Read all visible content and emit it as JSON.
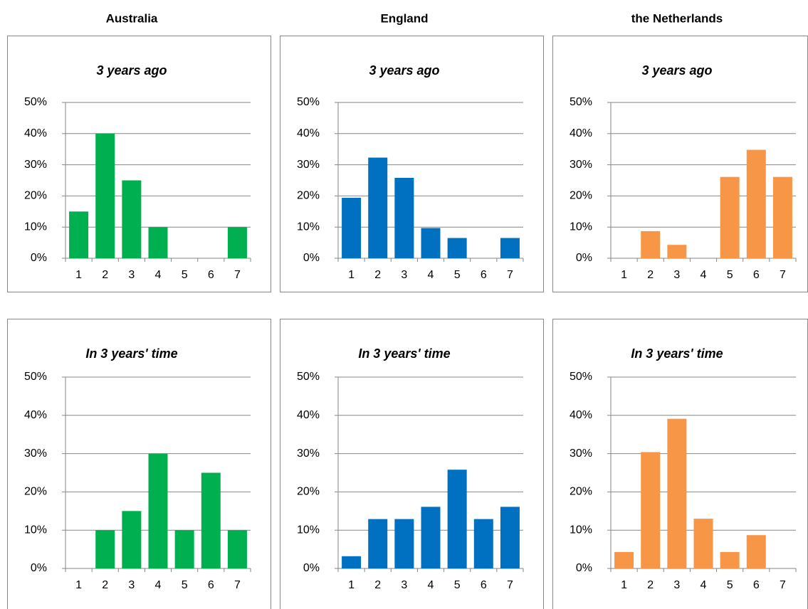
{
  "columns": [
    "Australia",
    "England",
    "the Netherlands"
  ],
  "chart_data": [
    {
      "type": "bar",
      "title": "3 years ago",
      "categories": [
        "1",
        "2",
        "3",
        "4",
        "5",
        "6",
        "7"
      ],
      "values": [
        15,
        40,
        25,
        10,
        0,
        0,
        10
      ],
      "color": "#00b050",
      "ylim": [
        0,
        50
      ],
      "yticks": [
        {
          "value": 0,
          "label": "0%"
        },
        {
          "value": 10,
          "label": "10%"
        },
        {
          "value": 20,
          "label": "20%"
        },
        {
          "value": 30,
          "label": "30%"
        },
        {
          "value": 40,
          "label": "40%"
        },
        {
          "value": 50,
          "label": "50%"
        }
      ],
      "grid": true
    },
    {
      "type": "bar",
      "title": "3 years ago",
      "categories": [
        "1",
        "2",
        "3",
        "4",
        "5",
        "6",
        "7"
      ],
      "values": [
        19.4,
        32.3,
        25.8,
        9.7,
        6.5,
        0,
        6.5
      ],
      "color": "#0070c0",
      "ylim": [
        0,
        50
      ],
      "yticks": [
        {
          "value": 0,
          "label": "0%"
        },
        {
          "value": 10,
          "label": "10%"
        },
        {
          "value": 20,
          "label": "20%"
        },
        {
          "value": 30,
          "label": "30%"
        },
        {
          "value": 40,
          "label": "40%"
        },
        {
          "value": 50,
          "label": "50%"
        }
      ],
      "grid": true
    },
    {
      "type": "bar",
      "title": "3 years ago",
      "categories": [
        "1",
        "2",
        "3",
        "4",
        "5",
        "6",
        "7"
      ],
      "values": [
        0,
        8.7,
        4.3,
        0,
        26.1,
        34.8,
        26.1
      ],
      "color": "#f79646",
      "ylim": [
        0,
        50
      ],
      "yticks": [
        {
          "value": 0,
          "label": "0%"
        },
        {
          "value": 10,
          "label": "10%"
        },
        {
          "value": 20,
          "label": "20%"
        },
        {
          "value": 30,
          "label": "30%"
        },
        {
          "value": 40,
          "label": "40%"
        },
        {
          "value": 50,
          "label": "50%"
        }
      ],
      "grid": true
    },
    {
      "type": "bar",
      "title": "In 3 years' time",
      "categories": [
        "1",
        "2",
        "3",
        "4",
        "5",
        "6",
        "7"
      ],
      "values": [
        0,
        10,
        15,
        30,
        10,
        25,
        10
      ],
      "color": "#00b050",
      "ylim": [
        0,
        50
      ],
      "yticks": [
        {
          "value": 0,
          "label": "0%"
        },
        {
          "value": 10,
          "label": "10%"
        },
        {
          "value": 20,
          "label": "20%"
        },
        {
          "value": 30,
          "label": "30%"
        },
        {
          "value": 40,
          "label": "40%"
        },
        {
          "value": 50,
          "label": "50%"
        }
      ],
      "grid": true
    },
    {
      "type": "bar",
      "title": "In 3 years' time",
      "categories": [
        "1",
        "2",
        "3",
        "4",
        "5",
        "6",
        "7"
      ],
      "values": [
        3.2,
        12.9,
        12.9,
        16.1,
        25.8,
        12.9,
        16.1
      ],
      "color": "#0070c0",
      "ylim": [
        0,
        50
      ],
      "yticks": [
        {
          "value": 0,
          "label": "0%"
        },
        {
          "value": 10,
          "label": "10%"
        },
        {
          "value": 20,
          "label": "20%"
        },
        {
          "value": 30,
          "label": "30%"
        },
        {
          "value": 40,
          "label": "40%"
        },
        {
          "value": 50,
          "label": "50%"
        }
      ],
      "grid": true
    },
    {
      "type": "bar",
      "title": "In 3 years' time",
      "categories": [
        "1",
        "2",
        "3",
        "4",
        "5",
        "6",
        "7"
      ],
      "values": [
        4.3,
        30.4,
        39.1,
        13,
        4.3,
        8.7,
        0
      ],
      "color": "#f79646",
      "ylim": [
        0,
        50
      ],
      "yticks": [
        {
          "value": 0,
          "label": "0%"
        },
        {
          "value": 10,
          "label": "10%"
        },
        {
          "value": 20,
          "label": "20%"
        },
        {
          "value": 30,
          "label": "30%"
        },
        {
          "value": 40,
          "label": "40%"
        },
        {
          "value": 50,
          "label": "50%"
        }
      ],
      "grid": true
    }
  ]
}
